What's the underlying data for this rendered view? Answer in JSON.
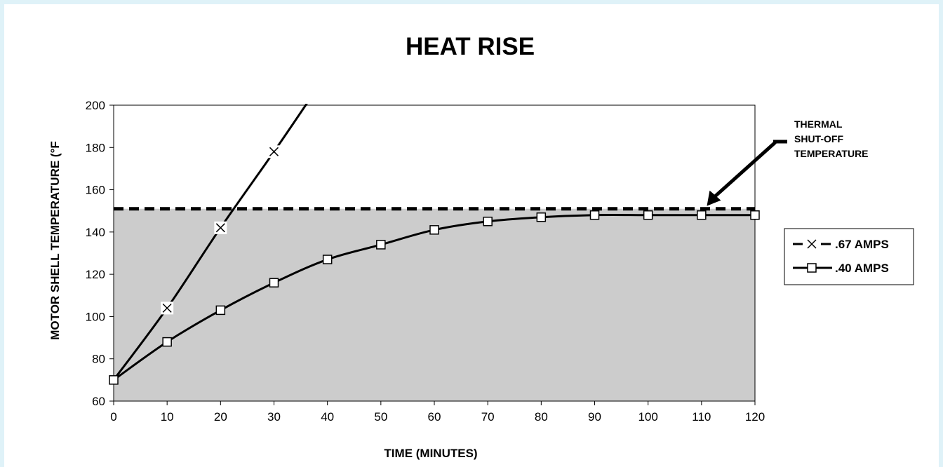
{
  "chart_data": {
    "type": "line",
    "title": "HEAT RISE",
    "xlabel": "TIME (MINUTES)",
    "ylabel": "MOTOR SHELL TEMPERATURE (°F",
    "xlim": [
      0,
      120
    ],
    "ylim": [
      60,
      200
    ],
    "xticks": [
      0,
      10,
      20,
      30,
      40,
      50,
      60,
      70,
      80,
      90,
      100,
      110,
      120
    ],
    "yticks": [
      60,
      80,
      100,
      120,
      140,
      160,
      180,
      200
    ],
    "grid": false,
    "plot_area_color": "#cccccc",
    "legend_position": "right",
    "series": [
      {
        "name": ".67 AMPS",
        "marker": "x",
        "marker_x": [
          0,
          10,
          20,
          30
        ],
        "marker_y": [
          70,
          104,
          142,
          178
        ],
        "line_x": [
          0,
          10,
          20,
          30,
          37
        ],
        "line_y": [
          70,
          104,
          142,
          178,
          204
        ]
      },
      {
        "name": ".40 AMPS",
        "marker": "square",
        "x": [
          0,
          10,
          20,
          30,
          40,
          50,
          60,
          70,
          80,
          90,
          100,
          110,
          120
        ],
        "y": [
          70,
          88,
          103,
          116,
          127,
          134,
          141,
          145,
          147,
          148,
          148,
          148,
          148
        ]
      }
    ],
    "threshold": {
      "y": 151,
      "style": "dashed"
    },
    "annotation": {
      "lines": [
        "THERMAL",
        "SHUT-OFF",
        "TEMPERATURE"
      ],
      "points_to_x": 111
    }
  }
}
